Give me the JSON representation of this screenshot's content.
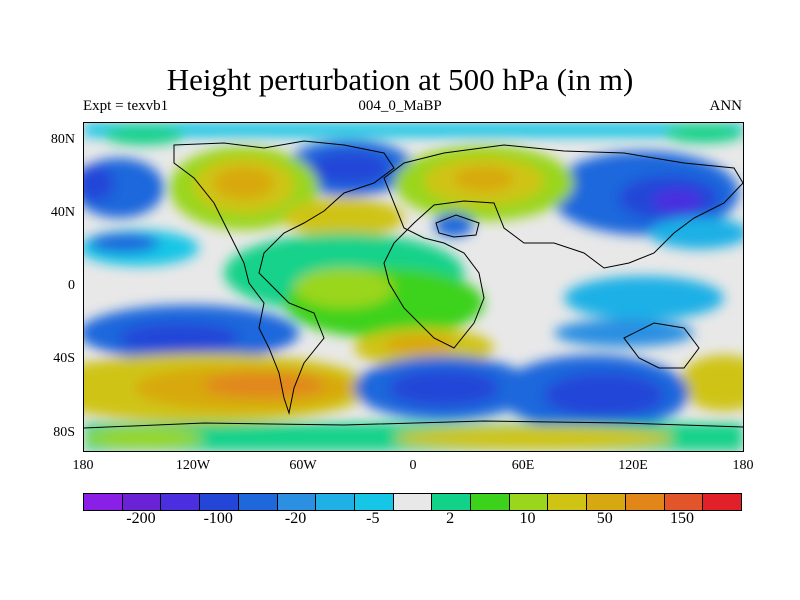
{
  "title": "Height perturbation at 500 hPa (in m)",
  "left_label": "Expt = texvb1",
  "center_label": "004_0_MaBP",
  "right_label": "ANN",
  "lat_ticks": [
    "80N",
    "40N",
    "0",
    "40S",
    "80S"
  ],
  "lon_ticks": [
    "180",
    "120W",
    "60W",
    "0",
    "60E",
    "120E",
    "180"
  ],
  "colorbar": {
    "colors": [
      "#8a1fe6",
      "#6a22d6",
      "#4a2ee0",
      "#2446d8",
      "#1e68dc",
      "#2b8fe2",
      "#1fb0e6",
      "#16c6e6",
      "#e8e8e8",
      "#12d28a",
      "#3cd21c",
      "#9ad61c",
      "#cfc414",
      "#d8a810",
      "#e2861a",
      "#e2542a",
      "#e2202a"
    ],
    "labels": [
      "-200",
      "-100",
      "-20",
      "-5",
      "2",
      "10",
      "50",
      "150"
    ]
  }
}
